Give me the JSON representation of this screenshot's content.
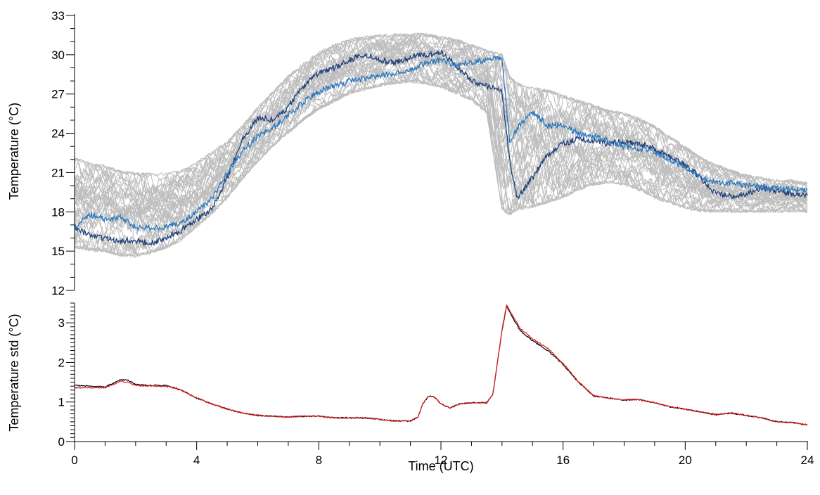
{
  "chart_data": [
    {
      "type": "line",
      "ylabel": "Temperature (°C)",
      "xlabel": "",
      "xlim": [
        0,
        24
      ],
      "ylim": [
        12,
        33
      ],
      "yticks": [
        "12",
        "15",
        "18",
        "21",
        "24",
        "27",
        "30",
        "33"
      ],
      "grid": false,
      "legend": "none",
      "note": "many grey ensemble member traces plus two highlighted blue traces",
      "x": [
        0,
        0.5,
        1,
        1.5,
        2,
        2.5,
        3,
        3.5,
        4,
        4.5,
        5,
        5.5,
        6,
        6.5,
        7,
        7.5,
        8,
        8.5,
        9,
        9.5,
        10,
        10.5,
        11,
        11.5,
        12,
        12.5,
        13,
        13.5,
        14,
        14.25,
        14.5,
        15,
        15.5,
        16,
        16.5,
        17,
        17.5,
        18,
        18.5,
        19,
        19.5,
        20,
        20.5,
        21,
        21.5,
        22,
        22.5,
        23,
        23.5,
        24
      ],
      "ensemble_band": {
        "color": "#bdbdbd",
        "lower": [
          15.2,
          15.0,
          14.9,
          14.6,
          14.5,
          14.8,
          15.2,
          15.8,
          16.8,
          17.8,
          19.0,
          20.5,
          21.8,
          23.0,
          24.0,
          25.0,
          25.8,
          26.4,
          27.0,
          27.3,
          27.6,
          27.8,
          27.9,
          27.8,
          27.5,
          27.0,
          26.5,
          25.5,
          18.0,
          17.6,
          18.0,
          18.2,
          18.6,
          19.0,
          19.6,
          20.0,
          20.2,
          20.0,
          19.6,
          19.0,
          18.6,
          18.2,
          18.0,
          18.0,
          18.0,
          18.0,
          18.0,
          18.0,
          18.0,
          18.0
        ],
        "upper": [
          22.2,
          21.8,
          21.6,
          21.2,
          21.0,
          21.0,
          21.0,
          21.2,
          21.8,
          22.6,
          23.4,
          24.6,
          26.0,
          27.2,
          28.4,
          29.4,
          30.2,
          30.8,
          31.2,
          31.4,
          31.5,
          31.6,
          31.6,
          31.6,
          31.4,
          31.2,
          30.8,
          30.4,
          30.2,
          28.5,
          28.0,
          27.6,
          27.4,
          27.0,
          26.6,
          26.2,
          25.8,
          25.6,
          25.2,
          24.6,
          23.8,
          23.0,
          22.2,
          21.6,
          21.2,
          20.8,
          20.6,
          20.4,
          20.4,
          20.2
        ]
      },
      "series": [
        {
          "color": "#1f3f7a",
          "values": [
            16.8,
            16.2,
            16.0,
            15.8,
            15.8,
            15.6,
            16.0,
            16.6,
            17.4,
            18.2,
            20.6,
            23.6,
            25.2,
            25.0,
            26.0,
            27.6,
            28.6,
            29.0,
            29.6,
            30.0,
            29.6,
            29.4,
            29.8,
            30.0,
            30.2,
            29.2,
            28.0,
            27.6,
            27.2,
            22.0,
            19.0,
            20.6,
            22.4,
            23.2,
            23.6,
            23.4,
            23.2,
            23.4,
            23.2,
            22.8,
            22.2,
            21.6,
            20.6,
            19.4,
            19.2,
            19.4,
            19.8,
            19.6,
            19.4,
            19.2
          ]
        },
        {
          "color": "#2a78c0",
          "values": [
            16.8,
            17.8,
            17.4,
            17.6,
            16.8,
            16.8,
            16.8,
            17.2,
            18.0,
            19.0,
            21.0,
            22.6,
            23.8,
            24.4,
            25.4,
            26.4,
            27.2,
            27.6,
            28.0,
            28.2,
            28.4,
            28.6,
            28.8,
            29.4,
            29.6,
            29.2,
            29.4,
            29.6,
            29.8,
            23.2,
            24.4,
            25.6,
            24.6,
            24.6,
            24.0,
            23.8,
            23.4,
            23.0,
            22.8,
            22.6,
            22.0,
            21.4,
            20.6,
            20.2,
            20.2,
            20.0,
            19.9,
            19.8,
            19.7,
            19.6
          ]
        }
      ]
    },
    {
      "type": "line",
      "ylabel": "Temperature std (°C)",
      "xlabel": "Time (UTC)",
      "xlim": [
        0,
        24
      ],
      "ylim": [
        0,
        3.5
      ],
      "yticks": [
        "0",
        "1",
        "2",
        "3"
      ],
      "xticks": [
        "0",
        "4",
        "8",
        "12",
        "16",
        "20",
        "24"
      ],
      "grid": false,
      "legend": "none",
      "x": [
        0,
        0.5,
        1,
        1.5,
        1.75,
        2,
        2.5,
        3,
        3.5,
        4,
        4.5,
        5,
        5.5,
        6,
        6.5,
        7,
        7.5,
        8,
        8.5,
        9,
        9.5,
        10,
        10.5,
        11,
        11.25,
        11.4,
        11.6,
        11.8,
        12,
        12.3,
        12.6,
        13,
        13.5,
        13.7,
        14,
        14.15,
        14.3,
        14.6,
        15,
        15.5,
        16,
        16.5,
        17,
        17.5,
        18,
        18.5,
        19,
        19.5,
        20,
        20.5,
        21,
        21.5,
        22,
        22.5,
        23,
        23.5,
        24
      ],
      "series": [
        {
          "color": "#000000",
          "values": [
            1.42,
            1.4,
            1.38,
            1.56,
            1.55,
            1.44,
            1.42,
            1.42,
            1.3,
            1.1,
            0.95,
            0.82,
            0.72,
            0.66,
            0.64,
            0.62,
            0.64,
            0.64,
            0.6,
            0.6,
            0.6,
            0.56,
            0.52,
            0.52,
            0.62,
            0.95,
            1.15,
            1.12,
            0.95,
            0.85,
            0.95,
            0.98,
            0.98,
            1.2,
            2.8,
            3.42,
            3.2,
            2.8,
            2.55,
            2.3,
            1.95,
            1.5,
            1.15,
            1.1,
            1.05,
            1.06,
            0.98,
            0.88,
            0.82,
            0.75,
            0.68,
            0.72,
            0.66,
            0.6,
            0.5,
            0.48,
            0.42
          ]
        },
        {
          "color": "#e01b1b",
          "values": [
            1.36,
            1.36,
            1.36,
            1.52,
            1.5,
            1.42,
            1.4,
            1.4,
            1.3,
            1.1,
            0.95,
            0.82,
            0.72,
            0.66,
            0.64,
            0.62,
            0.64,
            0.64,
            0.6,
            0.6,
            0.6,
            0.56,
            0.52,
            0.52,
            0.62,
            0.95,
            1.15,
            1.12,
            0.95,
            0.85,
            0.95,
            0.98,
            0.98,
            1.2,
            2.82,
            3.46,
            3.25,
            2.85,
            2.6,
            2.35,
            1.98,
            1.52,
            1.16,
            1.1,
            1.05,
            1.06,
            0.98,
            0.88,
            0.82,
            0.75,
            0.68,
            0.72,
            0.66,
            0.6,
            0.5,
            0.48,
            0.42
          ]
        }
      ]
    }
  ]
}
